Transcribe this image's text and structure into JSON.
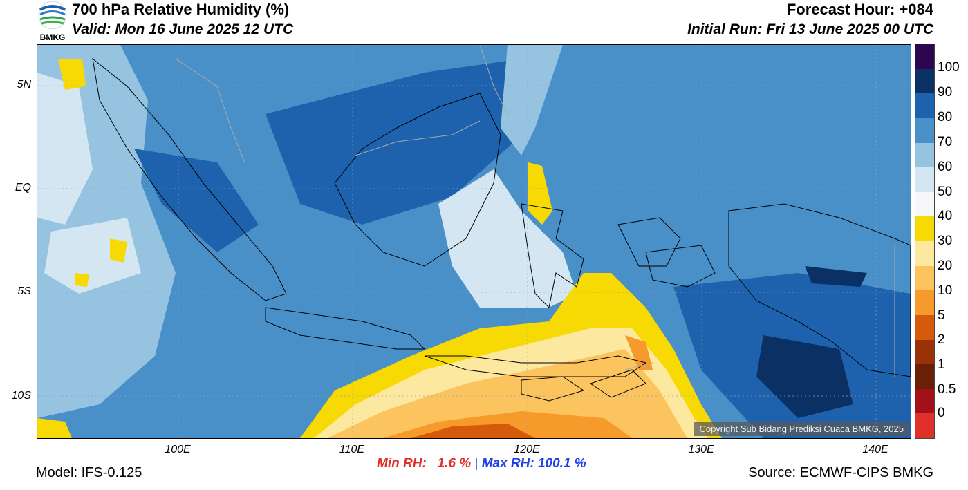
{
  "header": {
    "title": "700 hPa Relative Humidity (%)",
    "valid": "Valid: Mon 16 June 2025 12 UTC",
    "forecast_hour": "Forecast Hour: +084",
    "initial_run": "Initial Run: Fri 13 June 2025 00 UTC",
    "logo_text": "BMKG"
  },
  "map": {
    "lat_labels": [
      "5N",
      "EQ",
      "5S",
      "10S"
    ],
    "lon_labels": [
      "100E",
      "110E",
      "120E",
      "130E",
      "140E"
    ],
    "copyright": "Copyright Sub Bidang Prediksi Cuaca BMKG, 2025"
  },
  "colorbar": {
    "labels": [
      "100",
      "90",
      "80",
      "70",
      "60",
      "50",
      "40",
      "30",
      "20",
      "10",
      "5",
      "2",
      "1",
      "0.5",
      "0"
    ],
    "colors": [
      "#2c0750",
      "#0b3064",
      "#1e62ae",
      "#4a90c8",
      "#96c4e0",
      "#d3e6f2",
      "#f4f6f8",
      "#f7d904",
      "#fde8a0",
      "#fbc45e",
      "#f79a2c",
      "#d65a0c",
      "#9a3208",
      "#6a2006",
      "#a4101a",
      "#e0302c"
    ]
  },
  "footer": {
    "model": "Model: IFS-0.125",
    "source": "Source: ECMWF-CIPS BMKG",
    "min_rh": "Min RH:   1.6 %",
    "separator": "|",
    "max_rh": "Max RH: 100.1 %"
  }
}
